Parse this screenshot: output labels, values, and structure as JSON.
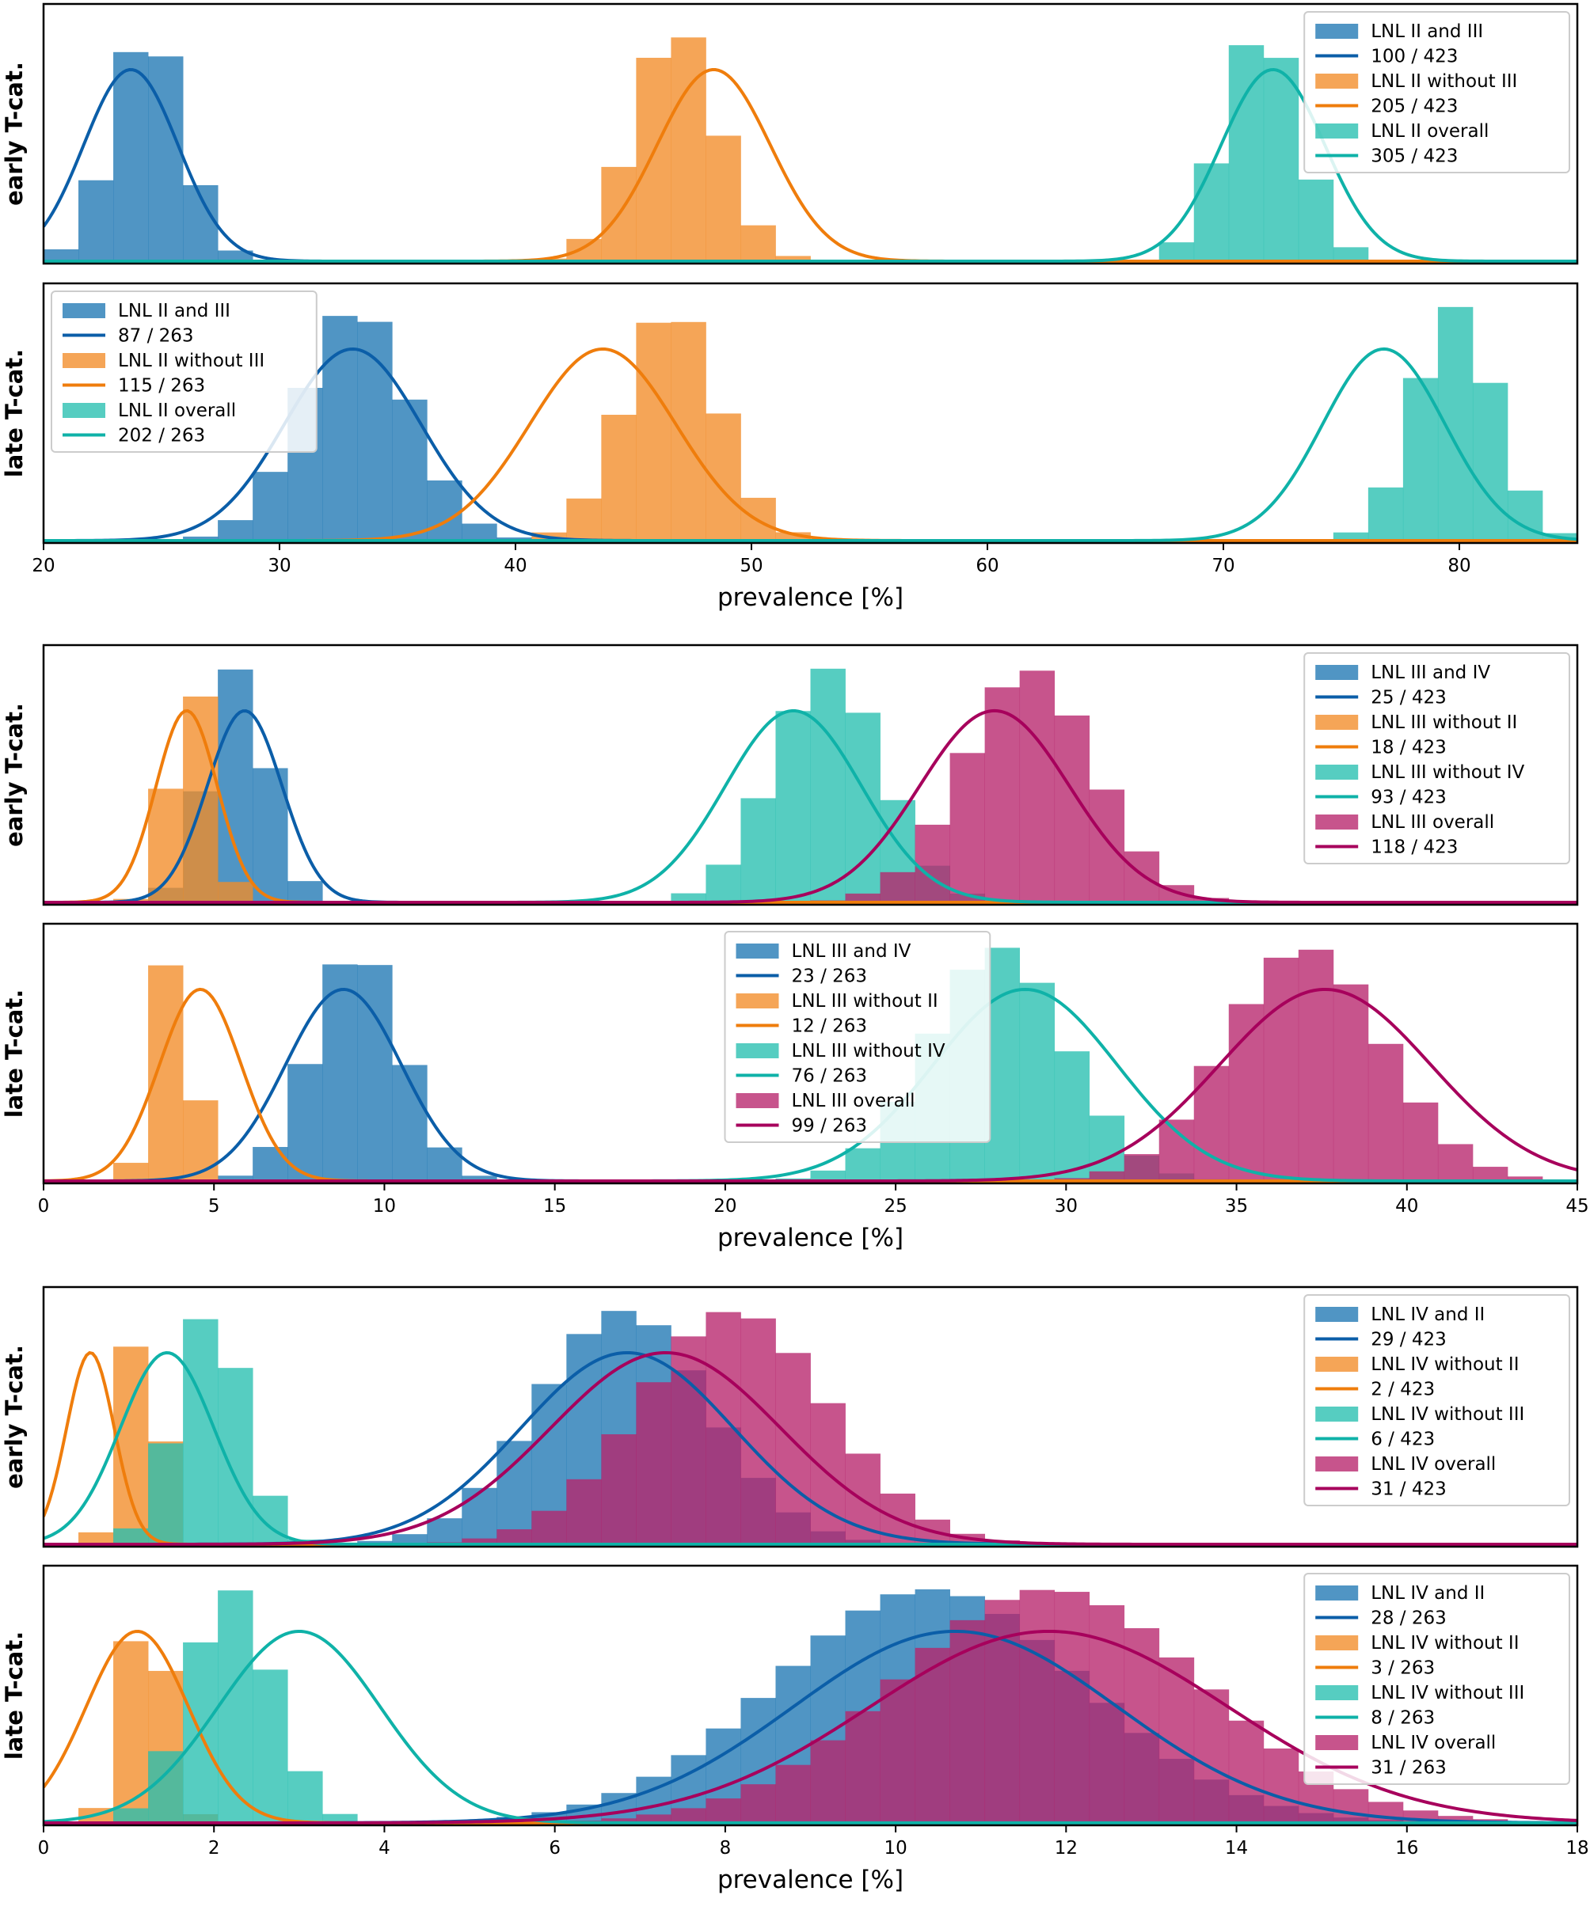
{
  "figure": {
    "ylabel_early": "early T-cat.",
    "ylabel_late": "late T-cat.",
    "xlabel": "prevalence [%]"
  },
  "colors": {
    "blue": "#1f77b4",
    "orange": "#f28c28",
    "teal": "#26bfb0",
    "magenta": "#b7246b",
    "blue_line": "#0b5ea8",
    "orange_line": "#ef7d0c",
    "teal_line": "#0fb2a8",
    "magenta_line": "#a7005c"
  },
  "chart_data": [
    {
      "type": "histogram",
      "group": "LNL II",
      "row": "early T-cat.",
      "xlim": [
        20,
        85
      ],
      "xticks": [
        20,
        30,
        40,
        50,
        60,
        70,
        80
      ],
      "legend_position": "top-right",
      "series": [
        {
          "name": "LNL II and III",
          "count_label": "100 / 423",
          "color": "blue",
          "hist_mean": 24.4,
          "hist_sd": 1.5,
          "curve_mean": 23.7,
          "curve_sd": 2.0
        },
        {
          "name": "LNL II without III",
          "count_label": "205 / 423",
          "color": "orange",
          "hist_mean": 46.8,
          "hist_sd": 1.8,
          "curve_mean": 48.4,
          "curve_sd": 2.4
        },
        {
          "name": "LNL II overall",
          "count_label": "305 / 423",
          "color": "teal",
          "hist_mean": 71.6,
          "hist_sd": 1.6,
          "curve_mean": 72.1,
          "curve_sd": 2.2
        }
      ]
    },
    {
      "type": "histogram",
      "group": "LNL II",
      "row": "late T-cat.",
      "xlim": [
        20,
        85
      ],
      "xticks": [
        20,
        30,
        40,
        50,
        60,
        70,
        80
      ],
      "xlabel": "prevalence [%]",
      "legend_position": "top-left",
      "series": [
        {
          "name": "LNL II and III",
          "count_label": "87 / 263",
          "color": "blue",
          "hist_mean": 33.2,
          "hist_sd": 2.3,
          "curve_mean": 33.1,
          "curve_sd": 2.9
        },
        {
          "name": "LNL II without III",
          "count_label": "115 / 263",
          "color": "orange",
          "hist_mean": 46.6,
          "hist_sd": 2.0,
          "curve_mean": 43.7,
          "curve_sd": 3.1
        },
        {
          "name": "LNL II overall",
          "count_label": "202 / 263",
          "color": "teal",
          "hist_mean": 79.8,
          "hist_sd": 1.7,
          "curve_mean": 76.8,
          "curve_sd": 2.6
        }
      ]
    },
    {
      "type": "histogram",
      "group": "LNL III",
      "row": "early T-cat.",
      "xlim": [
        0,
        45
      ],
      "xticks": [
        0,
        5,
        10,
        15,
        20,
        25,
        30,
        35,
        40,
        45
      ],
      "legend_position": "top-right",
      "series": [
        {
          "name": "LNL III and IV",
          "count_label": "25 / 423",
          "color": "blue",
          "hist_mean": 5.7,
          "hist_sd": 0.9,
          "curve_mean": 5.9,
          "curve_sd": 1.1
        },
        {
          "name": "LNL III without II",
          "count_label": "18 / 423",
          "color": "orange",
          "hist_mean": 4.3,
          "hist_sd": 0.6,
          "curve_mean": 4.2,
          "curve_sd": 0.9
        },
        {
          "name": "LNL III without IV",
          "count_label": "93 / 423",
          "color": "teal",
          "hist_mean": 23.0,
          "hist_sd": 1.6,
          "curve_mean": 22.0,
          "curve_sd": 2.0
        },
        {
          "name": "LNL III overall",
          "count_label": "118 / 423",
          "color": "magenta",
          "hist_mean": 28.9,
          "hist_sd": 1.9,
          "curve_mean": 27.9,
          "curve_sd": 2.2
        }
      ]
    },
    {
      "type": "histogram",
      "group": "LNL III",
      "row": "late T-cat.",
      "xlim": [
        0,
        45
      ],
      "xticks": [
        0,
        5,
        10,
        15,
        20,
        25,
        30,
        35,
        40,
        45
      ],
      "xlabel": "prevalence [%]",
      "legend_position": "top-center",
      "series": [
        {
          "name": "LNL III and IV",
          "count_label": "23 / 263",
          "color": "blue",
          "hist_mean": 9.2,
          "hist_sd": 1.3,
          "curve_mean": 8.8,
          "curve_sd": 1.7
        },
        {
          "name": "LNL III without II",
          "count_label": "12 / 263",
          "color": "orange",
          "hist_mean": 3.8,
          "hist_sd": 0.55,
          "curve_mean": 4.6,
          "curve_sd": 1.2
        },
        {
          "name": "LNL III without IV",
          "count_label": "76 / 263",
          "color": "teal",
          "hist_mean": 28.0,
          "hist_sd": 2.0,
          "curve_mean": 28.8,
          "curve_sd": 2.7
        },
        {
          "name": "LNL III overall",
          "count_label": "99 / 263",
          "color": "magenta",
          "hist_mean": 37.0,
          "hist_sd": 2.3,
          "curve_mean": 37.6,
          "curve_sd": 3.1
        }
      ]
    },
    {
      "type": "histogram",
      "group": "LNL IV",
      "row": "early T-cat.",
      "xlim": [
        0,
        18
      ],
      "xticks": [
        0,
        2,
        4,
        6,
        8,
        10,
        12,
        14,
        16,
        18
      ],
      "legend_position": "top-right",
      "series": [
        {
          "name": "LNL IV and II",
          "count_label": "29 / 423",
          "color": "blue",
          "hist_mean": 6.8,
          "hist_sd": 1.0,
          "curve_mean": 6.85,
          "curve_sd": 1.25
        },
        {
          "name": "LNL IV without II",
          "count_label": "2 / 423",
          "color": "orange",
          "hist_mean": 1.15,
          "hist_sd": 0.22,
          "curve_mean": 0.55,
          "curve_sd": 0.28
        },
        {
          "name": "LNL IV without III",
          "count_label": "6 / 423",
          "color": "teal",
          "hist_mean": 1.95,
          "hist_sd": 0.4,
          "curve_mean": 1.45,
          "curve_sd": 0.55
        },
        {
          "name": "LNL IV overall",
          "count_label": "31 / 423",
          "color": "magenta",
          "hist_mean": 8.1,
          "hist_sd": 1.1,
          "curve_mean": 7.3,
          "curve_sd": 1.35
        }
      ]
    },
    {
      "type": "histogram",
      "group": "LNL IV",
      "row": "late T-cat.",
      "xlim": [
        0,
        18
      ],
      "xticks": [
        0,
        2,
        4,
        6,
        8,
        10,
        12,
        14,
        16,
        18
      ],
      "xlabel": "prevalence [%]",
      "legend_position": "top-right",
      "series": [
        {
          "name": "LNL IV and II",
          "count_label": "28 / 263",
          "color": "blue",
          "hist_mean": 10.4,
          "hist_sd": 1.8,
          "curve_mean": 10.7,
          "curve_sd": 1.9
        },
        {
          "name": "LNL IV without II",
          "count_label": "3 / 263",
          "color": "orange",
          "hist_mean": 1.2,
          "hist_sd": 0.25,
          "curve_mean": 1.1,
          "curve_sd": 0.6
        },
        {
          "name": "LNL IV without III",
          "count_label": "8 / 263",
          "color": "teal",
          "hist_mean": 2.2,
          "hist_sd": 0.5,
          "curve_mean": 3.0,
          "curve_sd": 0.95
        },
        {
          "name": "LNL IV overall",
          "count_label": "31 / 263",
          "color": "magenta",
          "hist_mean": 11.8,
          "hist_sd": 1.8,
          "curve_mean": 11.8,
          "curve_sd": 2.1
        }
      ]
    }
  ]
}
